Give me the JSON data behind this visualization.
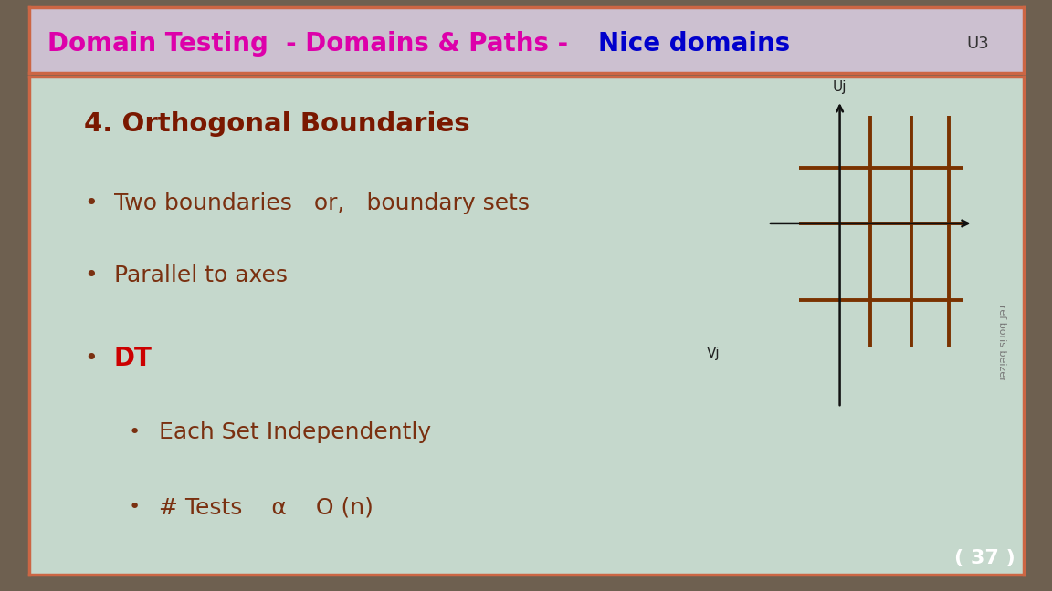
{
  "title_part1": "Domain Testing  - Domains & Paths - ",
  "title_part2": "Nice domains",
  "title_color1": "#dd00aa",
  "title_color2": "#0000cc",
  "title_bg": "#ccc0d0",
  "title_border": "#cc6644",
  "outer_bg": "#6e6050",
  "slide_bg": "#c5d8cc",
  "slide_border": "#cc6644",
  "u3_label": "U3",
  "page_num": "( 37 )",
  "heading": "4. Orthogonal Boundaries",
  "heading_color": "#7a1800",
  "bullet_color": "#7a3010",
  "dt_color": "#cc0000",
  "bullet1": "Two boundaries   or,   boundary sets",
  "bullet2": "Parallel to axes",
  "bullet3": "DT",
  "sub1": "Each Set Independently",
  "sub2": "# Tests    α    O (n)",
  "grid_color": "#7a3200",
  "axis_color": "#111111",
  "vj_label": "Vj",
  "uj_label": "Uj",
  "ref_text": "ref boris beizer",
  "ref_color": "#777777"
}
